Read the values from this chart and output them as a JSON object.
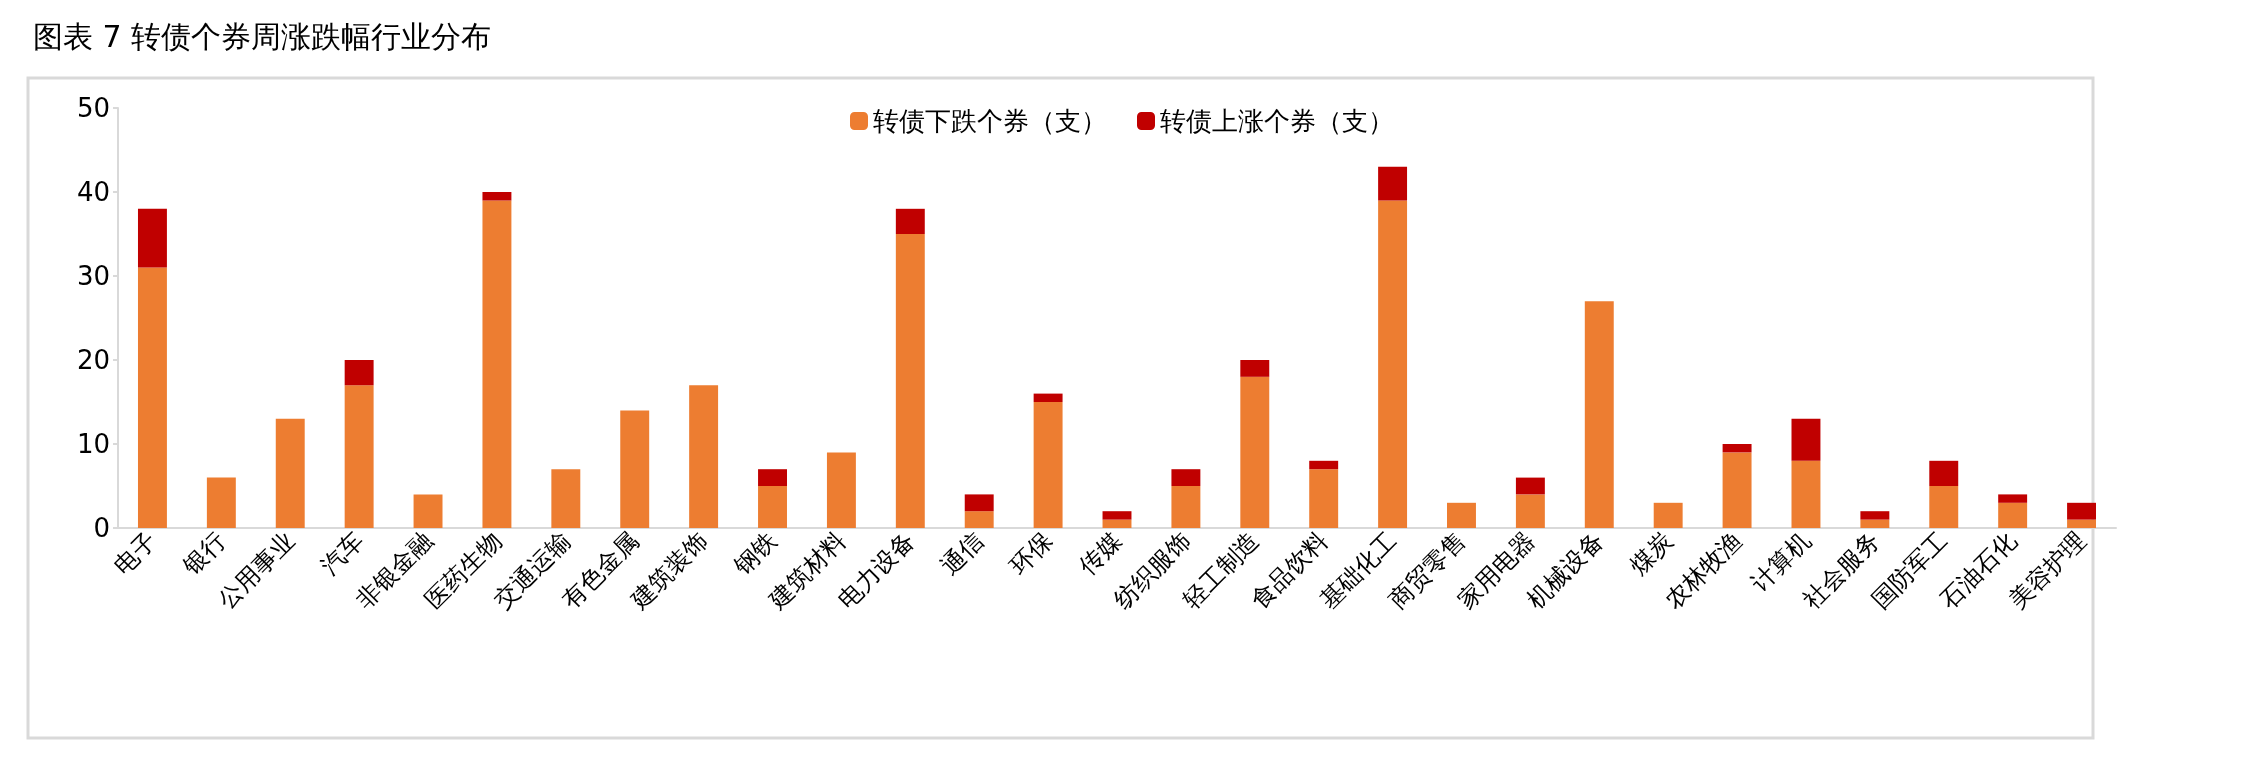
{
  "chart_data": {
    "type": "bar",
    "title": "图表 7 转债个券周涨跌幅行业分布",
    "stacked": true,
    "legend": "top",
    "grid": false,
    "categories": [
      "电子",
      "银行",
      "公用事业",
      "汽车",
      "非银金融",
      "医药生物",
      "交通运输",
      "有色金属",
      "建筑装饰",
      "钢铁",
      "建筑材料",
      "电力设备",
      "通信",
      "环保",
      "传媒",
      "纺织服饰",
      "轻工制造",
      "食品饮料",
      "基础化工",
      "商贸零售",
      "家用电器",
      "机械设备",
      "煤炭",
      "农林牧渔",
      "计算机",
      "社会服务",
      "国防军工",
      "石油石化",
      "美容护理"
    ],
    "series": [
      {
        "name": "转债下跌个券（支）",
        "color": "#ed7d31",
        "values": [
          31,
          6,
          13,
          17,
          4,
          39,
          7,
          14,
          17,
          5,
          9,
          35,
          2,
          15,
          1,
          5,
          18,
          7,
          39,
          3,
          4,
          27,
          3,
          9,
          8,
          1,
          5,
          3,
          1
        ]
      },
      {
        "name": "转债上涨个券（支）",
        "color": "#c00000",
        "values": [
          7,
          0,
          0,
          3,
          0,
          1,
          0,
          0,
          0,
          2,
          0,
          3,
          2,
          1,
          1,
          2,
          2,
          1,
          4,
          0,
          2,
          0,
          0,
          1,
          5,
          1,
          3,
          1,
          2
        ]
      }
    ],
    "ylim": [
      0,
      50
    ],
    "yticks": [
      0,
      10,
      20,
      30,
      40,
      50
    ]
  }
}
